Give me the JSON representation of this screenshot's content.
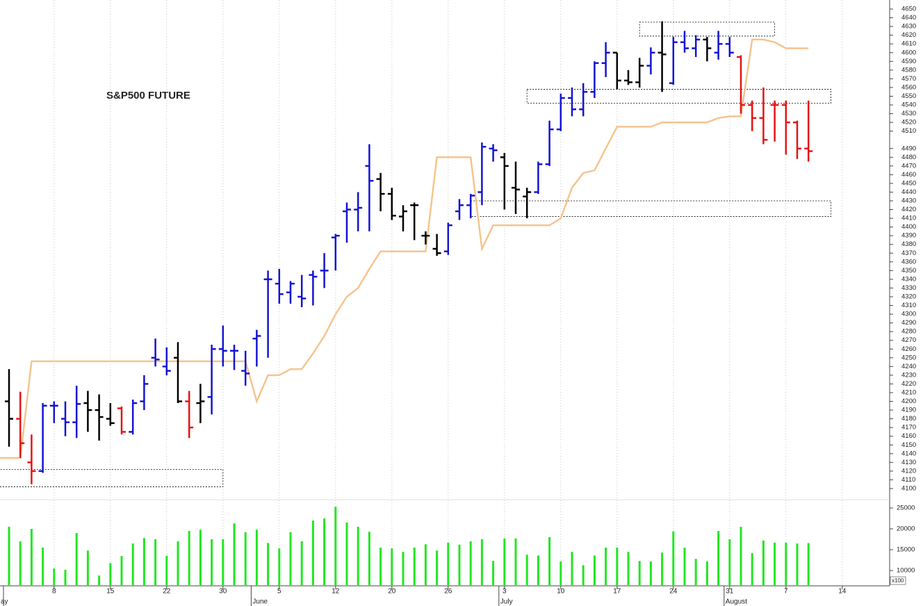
{
  "chart_data": {
    "type": "ohlc",
    "title": "S&P500 FUTURE",
    "categories": [
      null,
      null,
      null,
      null,
      "8",
      null,
      null,
      null,
      null,
      "15",
      null,
      null,
      null,
      null,
      "22",
      null,
      null,
      null,
      null,
      "30",
      null,
      null,
      null,
      null,
      "5",
      null,
      null,
      null,
      null,
      "12",
      null,
      null,
      null,
      null,
      "20",
      null,
      null,
      null,
      null,
      "26",
      null,
      null,
      null,
      null,
      "3",
      null,
      null,
      null,
      null,
      "10",
      null,
      null,
      null,
      null,
      "17",
      null,
      null,
      null,
      null,
      "24",
      null,
      null,
      null,
      null,
      "31",
      null,
      null,
      null,
      null,
      "7",
      null,
      null,
      null,
      null,
      "14"
    ],
    "months": [
      "ay",
      null,
      null,
      null,
      null,
      null,
      null,
      null,
      null,
      null,
      null,
      null,
      null,
      null,
      null,
      null,
      null,
      null,
      null,
      null,
      null,
      null,
      "June",
      null,
      null,
      null,
      null,
      null,
      null,
      null,
      null,
      null,
      null,
      null,
      null,
      null,
      null,
      null,
      null,
      null,
      null,
      null,
      null,
      null,
      "July",
      null,
      null,
      null,
      null,
      null,
      null,
      null,
      null,
      null,
      null,
      null,
      null,
      null,
      null,
      null,
      null,
      null,
      null,
      null,
      "August",
      null,
      null,
      null,
      null,
      null,
      null,
      null,
      null,
      null,
      null
    ],
    "open": [
      4200,
      4180,
      4130,
      4120,
      4195,
      4180,
      4176,
      4198,
      4190,
      4180,
      4192,
      4165,
      4200,
      4250,
      4240,
      4250,
      4200,
      4198,
      4205,
      4260,
      4258,
      4235,
      4272,
      4340,
      4335,
      4325,
      4320,
      4345,
      4350,
      4388,
      4418,
      4420,
      4470,
      4455,
      4438,
      4412,
      4425,
      4390,
      4375,
      4372,
      4418,
      4425,
      4440,
      4490,
      4480,
      4445,
      4435,
      4440,
      4472,
      4512,
      4548,
      4535,
      4555,
      4588,
      4600,
      4568,
      4566,
      4585,
      4600,
      4565,
      4612,
      4605,
      4615,
      4600,
      4610,
      4595,
      4540,
      4525,
      4540,
      4540,
      4520,
      4490,
      null,
      null,
      null
    ],
    "high": [
      4237,
      4211,
      4162,
      4198,
      4200,
      4200,
      4218,
      4212,
      4208,
      4198,
      4194,
      4202,
      4230,
      4272,
      4262,
      4268,
      4212,
      4220,
      4265,
      4287,
      4265,
      4258,
      4282,
      4350,
      4352,
      4338,
      4345,
      4350,
      4370,
      4392,
      4428,
      4440,
      4495,
      4462,
      4445,
      4425,
      4428,
      4395,
      4392,
      4405,
      4432,
      4438,
      4497,
      4495,
      4485,
      4475,
      4445,
      4475,
      4522,
      4553,
      4560,
      4565,
      4590,
      4612,
      4600,
      4580,
      4594,
      4606,
      4636,
      4618,
      4625,
      4620,
      4618,
      4625,
      4618,
      4597,
      4545,
      4560,
      4545,
      4545,
      4522,
      4545,
      null,
      null,
      null
    ],
    "low": [
      4148,
      4135,
      4105,
      4118,
      4175,
      4160,
      4158,
      4165,
      4155,
      4172,
      4162,
      4162,
      4190,
      4240,
      4230,
      4198,
      4158,
      4175,
      4185,
      4240,
      4236,
      4218,
      4240,
      4250,
      4312,
      4312,
      4308,
      4310,
      4330,
      4350,
      4382,
      4395,
      4395,
      4418,
      4408,
      4395,
      4385,
      4380,
      4367,
      4368,
      4408,
      4410,
      4425,
      4475,
      4420,
      4415,
      4410,
      4438,
      4470,
      4510,
      4527,
      4527,
      4548,
      4572,
      4558,
      4563,
      4560,
      4575,
      4555,
      4563,
      4600,
      4595,
      4590,
      4592,
      4595,
      4530,
      4510,
      4495,
      4498,
      4483,
      4478,
      4475,
      null,
      null,
      null
    ],
    "close": [
      4180,
      4152,
      4120,
      4195,
      4195,
      4176,
      4197,
      4190,
      4182,
      4175,
      4165,
      4198,
      4220,
      4248,
      4235,
      4200,
      4170,
      4200,
      4260,
      4258,
      4258,
      4232,
      4275,
      4340,
      4323,
      4335,
      4318,
      4343,
      4350,
      4390,
      4420,
      4422,
      4453,
      4438,
      4413,
      4418,
      4425,
      4390,
      4370,
      4402,
      4425,
      4436,
      4492,
      4488,
      4470,
      4443,
      4440,
      4472,
      4512,
      4548,
      4535,
      4555,
      4588,
      4600,
      4568,
      4566,
      4585,
      4600,
      4598,
      4612,
      4605,
      4615,
      4605,
      4610,
      4600,
      4540,
      4525,
      4500,
      4540,
      4520,
      4490,
      4487,
      null,
      null,
      null
    ],
    "bar_trend": [
      "flat",
      "down",
      "down",
      "up",
      "up",
      "up",
      "up",
      "flat",
      "flat",
      "flat",
      "down",
      "up",
      "up",
      "up",
      "up",
      "flat",
      "down",
      "flat",
      "up",
      "up",
      "up",
      "up",
      "up",
      "up",
      "up",
      "up",
      "up",
      "up",
      "up",
      "up",
      "up",
      "up",
      "up",
      "flat",
      "flat",
      "flat",
      "flat",
      "flat",
      "flat",
      "up",
      "up",
      "up",
      "up",
      "up",
      "flat",
      "flat",
      "flat",
      "up",
      "up",
      "up",
      "up",
      "up",
      "up",
      "up",
      "flat",
      "flat",
      "flat",
      "up",
      "flat",
      "up",
      "up",
      "up",
      "flat",
      "up",
      "up",
      "down",
      "down",
      "down",
      "down",
      "down",
      "down",
      "down",
      null,
      null,
      null
    ],
    "trend_colors": {
      "up": "#1414d2",
      "down": "#e41414",
      "flat": "#000000"
    },
    "stop_line": {
      "color": "#f5c48e",
      "values": [
        4135,
        4135,
        4246,
        4246,
        4246,
        4246,
        4246,
        4246,
        4246,
        4246,
        4246,
        4246,
        4246,
        4246,
        4246,
        4246,
        4246,
        4246,
        4246,
        4246,
        4246,
        4246,
        4200,
        4230,
        4230,
        4237,
        4237,
        4255,
        4275,
        4300,
        4320,
        4330,
        4352,
        4372,
        4372,
        4372,
        4372,
        4372,
        4480,
        4480,
        4480,
        4480,
        4375,
        4402,
        4402,
        4402,
        4402,
        4402,
        4402,
        4410,
        4445,
        4462,
        4465,
        4490,
        4515,
        4515,
        4515,
        4515,
        4520,
        4520,
        4520,
        4520,
        4520,
        4525,
        4527,
        4527,
        4615,
        4615,
        4612,
        4605,
        4605,
        4605,
        null,
        null,
        null
      ]
    },
    "zones": [
      {
        "low": 4102,
        "high": 4122,
        "start": -1,
        "end": 19
      },
      {
        "low": 4412,
        "high": 4430,
        "start": 41,
        "end": 73
      },
      {
        "low": 4542,
        "high": 4558,
        "start": 46,
        "end": 73
      },
      {
        "low": 4619,
        "high": 4635,
        "start": 56,
        "end": 68
      }
    ],
    "ylim": [
      4092,
      4656
    ],
    "yticks": [
      4100,
      4110,
      4120,
      4130,
      4140,
      4150,
      4160,
      4170,
      4180,
      4190,
      4200,
      4210,
      4220,
      4230,
      4240,
      4250,
      4260,
      4270,
      4280,
      4290,
      4300,
      4310,
      4320,
      4330,
      4340,
      4350,
      4360,
      4370,
      4380,
      4390,
      4400,
      4410,
      4420,
      4430,
      4440,
      4450,
      4460,
      4470,
      4480,
      4490,
      4510,
      4520,
      4530,
      4540,
      4550,
      4560,
      4570,
      4580,
      4590,
      4600,
      4610,
      4620,
      4630,
      4640,
      4650
    ],
    "volume": {
      "type": "bar",
      "color": "#22e622",
      "scale_label": "x100",
      "values": [
        20500,
        17000,
        20000,
        15500,
        10500,
        10200,
        19000,
        14800,
        8800,
        11800,
        13500,
        16500,
        17800,
        17500,
        13500,
        17000,
        19500,
        19800,
        17500,
        17500,
        21300,
        19200,
        19800,
        16600,
        15300,
        19200,
        17000,
        22000,
        22500,
        25300,
        21500,
        20500,
        19300,
        15500,
        15300,
        14500,
        15500,
        16300,
        14800,
        16700,
        16200,
        17000,
        17500,
        12300,
        17700,
        17700,
        13800,
        13600,
        18000,
        12200,
        14500,
        11300,
        13600,
        15500,
        15500,
        14500,
        12300,
        12200,
        14300,
        19400,
        15500,
        12800,
        12200,
        19500,
        17500,
        20500,
        14200,
        17200,
        16700,
        16700,
        16500,
        16600,
        null,
        null,
        null
      ],
      "ylim": [
        6500,
        26000
      ],
      "yticks": [
        10000,
        15000,
        20000,
        25000
      ]
    },
    "grid": true
  }
}
